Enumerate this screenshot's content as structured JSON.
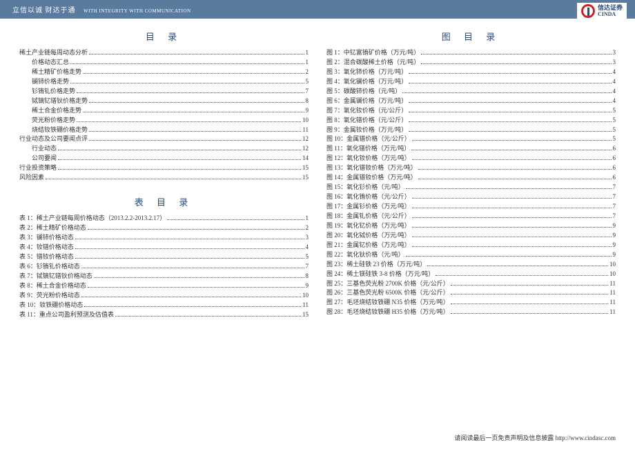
{
  "header": {
    "slogan": "立信以诚  财达于通",
    "slogan_en": "WITH INTEGRITY  WITH COMMUNICATION",
    "company_cn": "信达证券",
    "company_en": "CINDA"
  },
  "titles": {
    "toc": "目 录",
    "tables": "表 目 录",
    "figures": "图 目 录"
  },
  "toc": [
    {
      "label": "稀土产业链每周动态分析",
      "page": "1",
      "indent": 0
    },
    {
      "label": "价格动态汇总",
      "page": "1",
      "indent": 1
    },
    {
      "label": "稀土精矿价格走势",
      "page": "2",
      "indent": 1
    },
    {
      "label": "镧铈价格走势",
      "page": "5",
      "indent": 1
    },
    {
      "label": "钐铕钆价格走势",
      "page": "7",
      "indent": 1
    },
    {
      "label": "铽镝钇镨钬价格走势",
      "page": "8",
      "indent": 1
    },
    {
      "label": "稀土合金价格走势",
      "page": "9",
      "indent": 1
    },
    {
      "label": "荧光粉价格走势",
      "page": "10",
      "indent": 1
    },
    {
      "label": "烧结钕铁硼价格走势",
      "page": "11",
      "indent": 1
    },
    {
      "label": "行业动态及公司要闻点评",
      "page": "12",
      "indent": 0
    },
    {
      "label": "行业动态",
      "page": "12",
      "indent": 1
    },
    {
      "label": "公司要闻",
      "page": "14",
      "indent": 1
    },
    {
      "label": "行业投资策略",
      "page": "15",
      "indent": 0
    },
    {
      "label": "风险因素",
      "page": "15",
      "indent": 0
    }
  ],
  "tables": [
    {
      "label": "表 1：稀土产业链每周价格动态（2013.2.2-2013.2.17）",
      "page": "1"
    },
    {
      "label": "表 2：稀土精矿价格动态",
      "page": "2"
    },
    {
      "label": "表 3：镧铈价格动态",
      "page": "3"
    },
    {
      "label": "表 4：钕镨价格动态",
      "page": "4"
    },
    {
      "label": "表 5：镨钕价格动态",
      "page": "5"
    },
    {
      "label": "表 6：钐铕钆价格动态",
      "page": "7"
    },
    {
      "label": "表 7：铽镝钇镨钬价格动态",
      "page": "8"
    },
    {
      "label": "表 8：稀土合金价格动态",
      "page": "9"
    },
    {
      "label": "表 9：荧光粉价格动态",
      "page": "10"
    },
    {
      "label": "表 10：钕铁硼价格动态",
      "page": "11"
    },
    {
      "label": "表 11：重点公司盈利预测及估值表",
      "page": "15"
    }
  ],
  "figures": [
    {
      "label": "图 1：中钇富铕矿价格（万元/吨）",
      "page": "3"
    },
    {
      "label": "图 2：混合碳酸稀土价格（元/吨）",
      "page": "3"
    },
    {
      "label": "图 3：氧化铈价格（万元/吨）",
      "page": "4"
    },
    {
      "label": "图 4：氧化镧价格（万元/吨）",
      "page": "4"
    },
    {
      "label": "图 5：碳酸铈价格（元/吨）",
      "page": "4"
    },
    {
      "label": "图 6：金属镧价格（万元/吨）",
      "page": "4"
    },
    {
      "label": "图 7：氧化钕价格（元/公斤）",
      "page": "5"
    },
    {
      "label": "图 8：氧化镨价格（元/公斤）",
      "page": "5"
    },
    {
      "label": "图 9：金属钕价格（万元/吨）",
      "page": "5"
    },
    {
      "label": "图 10：金属镨价格（元/公斤）",
      "page": "5"
    },
    {
      "label": "图 11：氧化镨价格（万元/吨）",
      "page": "6"
    },
    {
      "label": "图 12：氧化钕价格（万元/吨）",
      "page": "6"
    },
    {
      "label": "图 13：氧化镨钕价格（万元/吨）",
      "page": "6"
    },
    {
      "label": "图 14：金属镨钕价格（万元/吨）",
      "page": "6"
    },
    {
      "label": "图 15：氧化钐价格（元/吨）",
      "page": "7"
    },
    {
      "label": "图 16：氧化铕价格（元/公斤）",
      "page": "7"
    },
    {
      "label": "图 17：金属钐价格（万元/吨）",
      "page": "7"
    },
    {
      "label": "图 18：金属钆价格（元/公斤）",
      "page": "7"
    },
    {
      "label": "图 19：氧化钇价格（万元/吨）",
      "page": "9"
    },
    {
      "label": "图 20：氧化铽价格（万元/吨）",
      "page": "9"
    },
    {
      "label": "图 21：金属钇价格（万元/吨）",
      "page": "9"
    },
    {
      "label": "图 22：氧化钬价格（元/吨）",
      "page": "9"
    },
    {
      "label": "图 23：稀土硅铁 23 价格（万元/吨）",
      "page": "10"
    },
    {
      "label": "图 24：稀土镁硅铁 3-8 价格（万元/吨）",
      "page": "10"
    },
    {
      "label": "图 25：三基色荧光粉 2700K 价格（元/公斤）",
      "page": "11"
    },
    {
      "label": "图 26：三基色荧光粉 6500K 价格（元/公斤）",
      "page": "11"
    },
    {
      "label": "图 27：毛坯烧结钕铁硼 N35 价格（万元/吨）",
      "page": "11"
    },
    {
      "label": "图 28：毛坯烧结钕铁硼 H35 价格（万元/吨）",
      "page": "11"
    }
  ],
  "footer": "请阅读最后一页免责声明及信息披露 http://www.cindasc.com"
}
